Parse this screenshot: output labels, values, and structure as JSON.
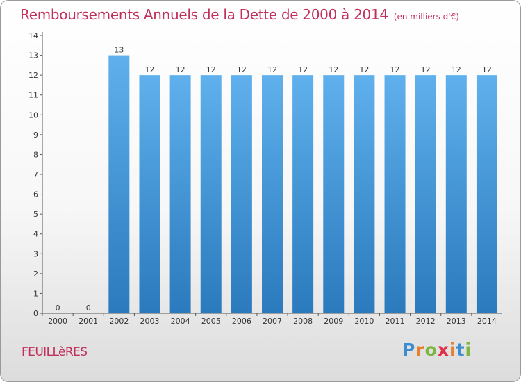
{
  "chart_data": {
    "type": "bar",
    "title": "Remboursements Annuels de la Dette de 2000 à 2014",
    "subtitle": "(en milliers d'€)",
    "categories": [
      "2000",
      "2001",
      "2002",
      "2003",
      "2004",
      "2005",
      "2006",
      "2007",
      "2008",
      "2009",
      "2010",
      "2011",
      "2012",
      "2013",
      "2014"
    ],
    "values": [
      0,
      0,
      13,
      12,
      12,
      12,
      12,
      12,
      12,
      12,
      12,
      12,
      12,
      12,
      12
    ],
    "value_labels": [
      "0",
      "0",
      "13",
      "12",
      "12",
      "12",
      "12",
      "12",
      "12",
      "12",
      "12",
      "12",
      "12",
      "12",
      "12"
    ],
    "ylim": [
      0,
      14
    ],
    "yticks": [
      0,
      1,
      2,
      3,
      4,
      5,
      6,
      7,
      8,
      9,
      10,
      11,
      12,
      13,
      14
    ],
    "xlabel": "",
    "ylabel": "",
    "grid": false
  },
  "footer": {
    "commune": "FEUILLèRES",
    "logo": "Proxiti"
  },
  "colors": {
    "title": "#c1305b",
    "bar_top": "#5fb0ec",
    "bar_bottom": "#2a7abd"
  }
}
